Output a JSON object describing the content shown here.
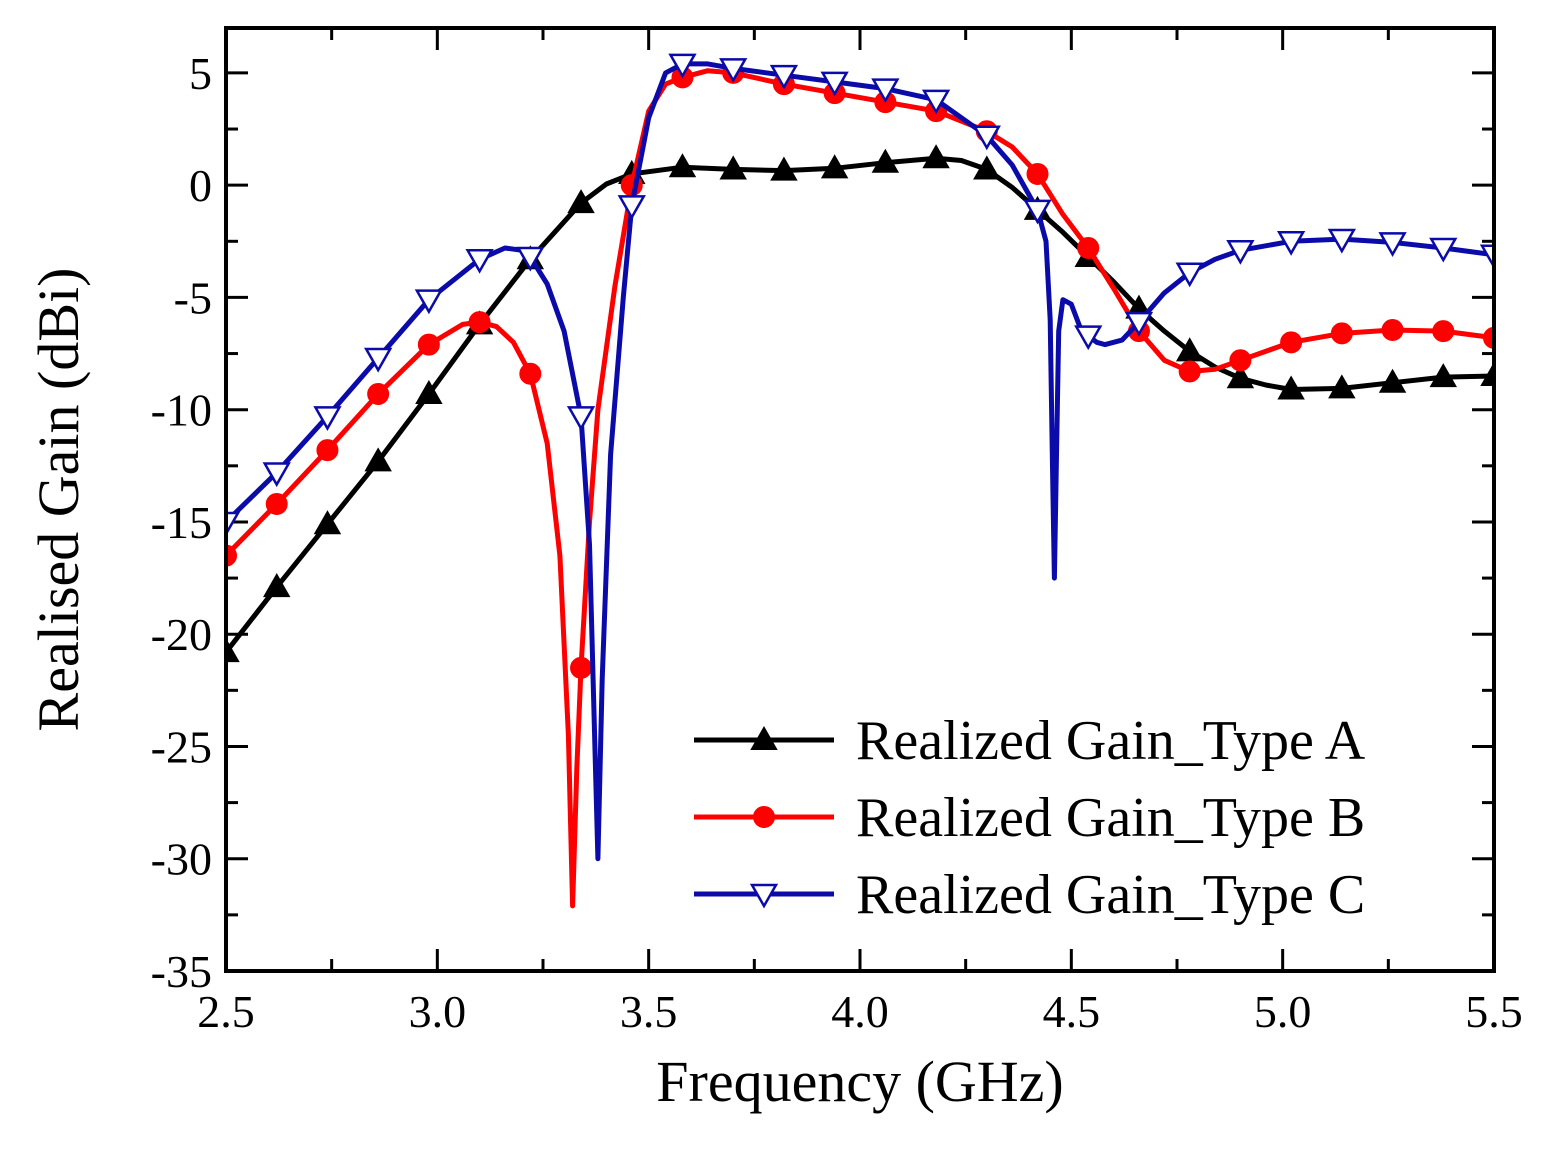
{
  "chart_data": {
    "type": "line",
    "title": "",
    "xlabel": "Frequency (GHz)",
    "ylabel": "Realised Gain (dBi)",
    "xlim": [
      2.5,
      5.5
    ],
    "ylim": [
      -35,
      7
    ],
    "x_ticks": [
      "2.5",
      "3.0",
      "3.5",
      "4.0",
      "4.5",
      "5.0",
      "5.5"
    ],
    "x_tick_values": [
      2.5,
      3.0,
      3.5,
      4.0,
      4.5,
      5.0,
      5.5
    ],
    "y_ticks": [
      "5",
      "0",
      "-5",
      "-10",
      "-15",
      "-20",
      "-25",
      "-30",
      "-35"
    ],
    "y_tick_values": [
      5,
      0,
      -5,
      -10,
      -15,
      -20,
      -25,
      -30,
      -35
    ],
    "grid": false,
    "legend_position": "bottom-right",
    "series": [
      {
        "name": "Realized Gain_Type A",
        "color": "#000000",
        "marker": "triangle-up",
        "points": [
          [
            2.5,
            -20.8
          ],
          [
            2.62,
            -17.9
          ],
          [
            2.74,
            -15.1
          ],
          [
            2.86,
            -12.3
          ],
          [
            2.98,
            -9.3
          ],
          [
            3.1,
            -6.2
          ],
          [
            3.22,
            -3.3
          ],
          [
            3.34,
            -0.8
          ],
          [
            3.4,
            0.05
          ],
          [
            3.46,
            0.5
          ],
          [
            3.58,
            0.8
          ],
          [
            3.7,
            0.7
          ],
          [
            3.82,
            0.65
          ],
          [
            3.94,
            0.75
          ],
          [
            4.06,
            1.0
          ],
          [
            4.18,
            1.2
          ],
          [
            4.24,
            1.1
          ],
          [
            4.3,
            0.7
          ],
          [
            4.36,
            -0.1
          ],
          [
            4.42,
            -1.1
          ],
          [
            4.48,
            -2.1
          ],
          [
            4.54,
            -3.2
          ],
          [
            4.6,
            -4.3
          ],
          [
            4.66,
            -5.5
          ],
          [
            4.72,
            -6.5
          ],
          [
            4.78,
            -7.4
          ],
          [
            4.84,
            -8.1
          ],
          [
            4.9,
            -8.6
          ],
          [
            4.96,
            -8.9
          ],
          [
            5.02,
            -9.1
          ],
          [
            5.14,
            -9.05
          ],
          [
            5.26,
            -8.8
          ],
          [
            5.38,
            -8.55
          ],
          [
            5.5,
            -8.5
          ]
        ],
        "marker_x": [
          2.5,
          2.62,
          2.74,
          2.86,
          2.98,
          3.1,
          3.22,
          3.34,
          3.46,
          3.58,
          3.7,
          3.82,
          3.94,
          4.06,
          4.18,
          4.3,
          4.42,
          4.54,
          4.66,
          4.78,
          4.9,
          5.02,
          5.14,
          5.26,
          5.38,
          5.5
        ]
      },
      {
        "name": "Realized Gain_Type B",
        "color": "#ff0000",
        "marker": "circle",
        "points": [
          [
            2.5,
            -16.5
          ],
          [
            2.62,
            -14.2
          ],
          [
            2.74,
            -11.8
          ],
          [
            2.86,
            -9.3
          ],
          [
            2.98,
            -7.1
          ],
          [
            3.06,
            -6.2
          ],
          [
            3.1,
            -6.1
          ],
          [
            3.14,
            -6.3
          ],
          [
            3.18,
            -7.0
          ],
          [
            3.22,
            -8.4
          ],
          [
            3.26,
            -11.5
          ],
          [
            3.29,
            -16.5
          ],
          [
            3.31,
            -24.5
          ],
          [
            3.32,
            -32.1
          ],
          [
            3.33,
            -26.0
          ],
          [
            3.34,
            -21.5
          ],
          [
            3.36,
            -15.0
          ],
          [
            3.38,
            -10.0
          ],
          [
            3.42,
            -4.5
          ],
          [
            3.46,
            0.0
          ],
          [
            3.5,
            3.3
          ],
          [
            3.54,
            4.5
          ],
          [
            3.58,
            4.8
          ],
          [
            3.64,
            5.1
          ],
          [
            3.7,
            5.0
          ],
          [
            3.82,
            4.5
          ],
          [
            3.94,
            4.1
          ],
          [
            4.06,
            3.7
          ],
          [
            4.18,
            3.3
          ],
          [
            4.3,
            2.4
          ],
          [
            4.36,
            1.7
          ],
          [
            4.42,
            0.5
          ],
          [
            4.48,
            -1.3
          ],
          [
            4.54,
            -2.8
          ],
          [
            4.6,
            -4.6
          ],
          [
            4.66,
            -6.5
          ],
          [
            4.72,
            -7.8
          ],
          [
            4.78,
            -8.3
          ],
          [
            4.84,
            -8.2
          ],
          [
            4.9,
            -7.8
          ],
          [
            5.02,
            -7.0
          ],
          [
            5.14,
            -6.6
          ],
          [
            5.26,
            -6.45
          ],
          [
            5.38,
            -6.5
          ],
          [
            5.5,
            -6.8
          ]
        ],
        "marker_x": [
          2.5,
          2.62,
          2.74,
          2.86,
          2.98,
          3.1,
          3.22,
          3.34,
          3.46,
          3.58,
          3.7,
          3.82,
          3.94,
          4.06,
          4.18,
          4.3,
          4.42,
          4.54,
          4.66,
          4.78,
          4.9,
          5.02,
          5.14,
          5.26,
          5.38,
          5.5
        ]
      },
      {
        "name": "Realized Gain_Type C",
        "color": "#0b0baa",
        "marker": "triangle-down",
        "points": [
          [
            2.5,
            -15.0
          ],
          [
            2.62,
            -12.8
          ],
          [
            2.74,
            -10.3
          ],
          [
            2.86,
            -7.7
          ],
          [
            2.98,
            -5.1
          ],
          [
            3.1,
            -3.3
          ],
          [
            3.16,
            -2.8
          ],
          [
            3.2,
            -2.9
          ],
          [
            3.22,
            -3.2
          ],
          [
            3.26,
            -4.4
          ],
          [
            3.3,
            -6.5
          ],
          [
            3.34,
            -10.3
          ],
          [
            3.36,
            -16.0
          ],
          [
            3.37,
            -23.0
          ],
          [
            3.38,
            -30.0
          ],
          [
            3.39,
            -22.0
          ],
          [
            3.41,
            -12.0
          ],
          [
            3.44,
            -5.0
          ],
          [
            3.46,
            -0.9
          ],
          [
            3.5,
            3.0
          ],
          [
            3.54,
            5.0
          ],
          [
            3.58,
            5.4
          ],
          [
            3.64,
            5.4
          ],
          [
            3.7,
            5.2
          ],
          [
            3.82,
            4.9
          ],
          [
            3.94,
            4.6
          ],
          [
            4.06,
            4.3
          ],
          [
            4.18,
            3.8
          ],
          [
            4.3,
            2.2
          ],
          [
            4.36,
            0.9
          ],
          [
            4.42,
            -1.1
          ],
          [
            4.44,
            -2.5
          ],
          [
            4.45,
            -6.0
          ],
          [
            4.455,
            -12.0
          ],
          [
            4.46,
            -17.5
          ],
          [
            4.465,
            -12.0
          ],
          [
            4.47,
            -6.5
          ],
          [
            4.48,
            -5.1
          ],
          [
            4.5,
            -5.3
          ],
          [
            4.52,
            -6.3
          ],
          [
            4.54,
            -6.7
          ],
          [
            4.56,
            -7.0
          ],
          [
            4.58,
            -7.1
          ],
          [
            4.62,
            -6.9
          ],
          [
            4.66,
            -6.1
          ],
          [
            4.72,
            -4.8
          ],
          [
            4.78,
            -3.9
          ],
          [
            4.84,
            -3.3
          ],
          [
            4.9,
            -2.9
          ],
          [
            5.02,
            -2.5
          ],
          [
            5.14,
            -2.4
          ],
          [
            5.26,
            -2.55
          ],
          [
            5.38,
            -2.8
          ],
          [
            5.5,
            -3.1
          ]
        ],
        "marker_x": [
          2.5,
          2.62,
          2.74,
          2.86,
          2.98,
          3.1,
          3.22,
          3.34,
          3.46,
          3.58,
          3.7,
          3.82,
          3.94,
          4.06,
          4.18,
          4.3,
          4.42,
          4.54,
          4.66,
          4.78,
          4.9,
          5.02,
          5.14,
          5.26,
          5.38,
          5.5
        ]
      }
    ]
  }
}
